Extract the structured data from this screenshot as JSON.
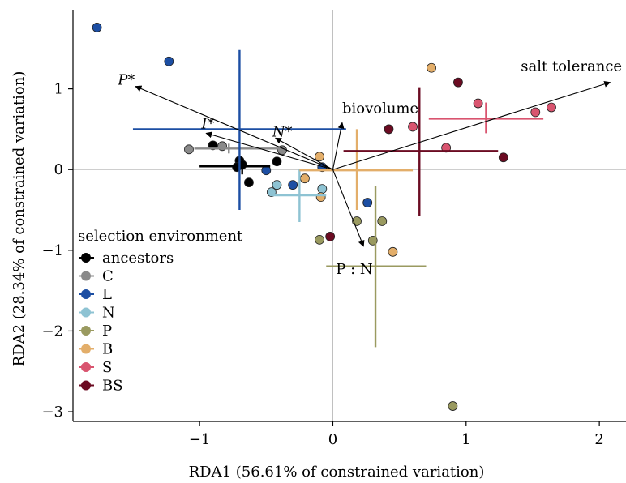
{
  "chart_data": {
    "type": "scatter",
    "xlabel": "RDA1 (56.61% of constrained variation)",
    "ylabel": "RDA2 (28.34% of constrained variation)",
    "xlim": [
      -1.95,
      2.2
    ],
    "ylim": [
      -3.12,
      1.98
    ],
    "xticks": [
      -1,
      0,
      1,
      2
    ],
    "yticks": [
      -3,
      -2,
      -1,
      0,
      1
    ],
    "xtick_labels": [
      "−1",
      "0",
      "1",
      "2"
    ],
    "ytick_labels": [
      "−3",
      "−2",
      "−1",
      "0",
      "1"
    ],
    "zero_lines": true,
    "legend": {
      "title": "selection environment",
      "placement": "left"
    },
    "series": [
      {
        "name": "ancestors",
        "color": "#000000",
        "points": [
          [
            -0.9,
            0.3
          ],
          [
            -0.7,
            0.11
          ],
          [
            -0.72,
            0.03
          ],
          [
            -0.68,
            0.06
          ],
          [
            -0.63,
            -0.16
          ],
          [
            -0.42,
            0.1
          ]
        ],
        "centroid": [
          -0.68,
          0.04
        ],
        "hspan": [
          -1.0,
          -0.47
        ],
        "vspan": [
          -0.06,
          0.12
        ]
      },
      {
        "name": "C",
        "color": "#8a8a8a",
        "points": [
          [
            -1.08,
            0.25
          ],
          [
            -0.83,
            0.29
          ],
          [
            -0.38,
            0.24
          ]
        ],
        "centroid": [
          -0.78,
          0.26
        ],
        "hspan": [
          -1.04,
          -0.36
        ],
        "vspan": [
          0.2,
          0.32
        ]
      },
      {
        "name": "L",
        "color": "#1c4ea3",
        "points": [
          [
            -1.77,
            1.76
          ],
          [
            -1.23,
            1.34
          ],
          [
            -0.5,
            -0.01
          ],
          [
            -0.3,
            -0.19
          ],
          [
            -0.08,
            0.03
          ],
          [
            0.26,
            -0.41
          ]
        ],
        "centroid": [
          -0.7,
          0.5
        ],
        "hspan": [
          -1.5,
          0.1
        ],
        "vspan": [
          -0.5,
          1.48
        ]
      },
      {
        "name": "N",
        "color": "#8ec3d3",
        "points": [
          [
            -0.46,
            -0.28
          ],
          [
            -0.42,
            -0.19
          ],
          [
            -0.08,
            -0.24
          ]
        ],
        "centroid": [
          -0.25,
          -0.32
        ],
        "hspan": [
          -0.46,
          -0.05
        ],
        "vspan": [
          -0.65,
          0.0
        ]
      },
      {
        "name": "P",
        "color": "#9a9a60",
        "points": [
          [
            -0.1,
            -0.87
          ],
          [
            0.18,
            -0.64
          ],
          [
            0.3,
            -0.88
          ],
          [
            0.37,
            -0.64
          ],
          [
            0.9,
            -2.93
          ]
        ],
        "centroid": [
          0.32,
          -1.2
        ],
        "hspan": [
          -0.05,
          0.7
        ],
        "vspan": [
          -2.2,
          -0.2
        ]
      },
      {
        "name": "B",
        "color": "#e3ae6a",
        "points": [
          [
            -0.21,
            -0.11
          ],
          [
            -0.09,
            -0.34
          ],
          [
            -0.1,
            0.16
          ],
          [
            0.45,
            -1.02
          ],
          [
            0.74,
            1.26
          ]
        ],
        "centroid": [
          0.18,
          -0.01
        ],
        "hspan": [
          -0.25,
          0.6
        ],
        "vspan": [
          -0.5,
          0.5
        ]
      },
      {
        "name": "S",
        "color": "#d9546f",
        "points": [
          [
            0.6,
            0.53
          ],
          [
            0.85,
            0.27
          ],
          [
            1.09,
            0.82
          ],
          [
            1.52,
            0.71
          ],
          [
            1.64,
            0.77
          ]
        ],
        "centroid": [
          1.15,
          0.63
        ],
        "hspan": [
          0.72,
          1.58
        ],
        "vspan": [
          0.45,
          0.83
        ]
      },
      {
        "name": "BS",
        "color": "#6b0b22",
        "points": [
          [
            -0.02,
            -0.83
          ],
          [
            0.42,
            0.5
          ],
          [
            0.94,
            1.08
          ],
          [
            1.28,
            0.15
          ]
        ],
        "centroid": [
          0.65,
          0.23
        ],
        "hspan": [
          0.08,
          1.24
        ],
        "vspan": [
          -0.57,
          1.02
        ]
      }
    ],
    "vectors": [
      {
        "label": "P*",
        "x": -1.48,
        "y": 1.03,
        "italic": true
      },
      {
        "label": "I*",
        "x": -0.95,
        "y": 0.45,
        "italic": true
      },
      {
        "label": "N*",
        "x": -0.43,
        "y": 0.39,
        "italic": true
      },
      {
        "label": "biovolume",
        "x": 0.07,
        "y": 0.58,
        "italic": false
      },
      {
        "label": "P : N",
        "x": 0.23,
        "y": -0.95,
        "italic": false
      },
      {
        "label": "salt tolerance",
        "x": 2.08,
        "y": 1.08,
        "italic": false
      }
    ]
  }
}
